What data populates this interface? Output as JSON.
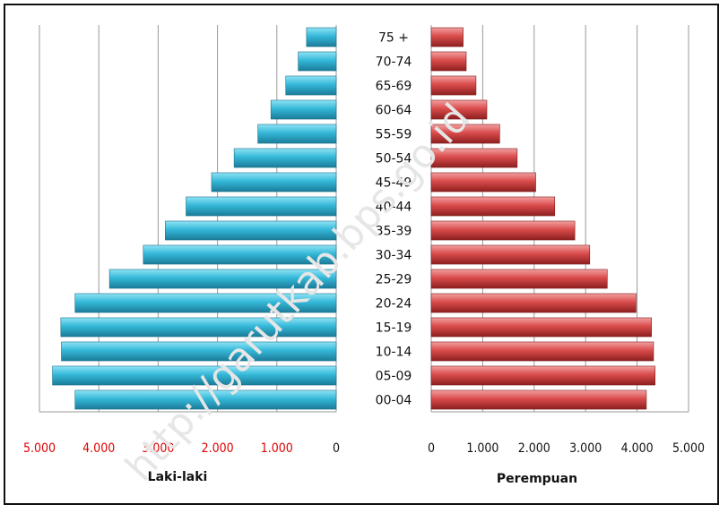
{
  "chart_data": {
    "type": "bar",
    "orientation": "horizontal-population-pyramid",
    "categories": [
      "00-04",
      "05-09",
      "10-14",
      "15-19",
      "20-24",
      "25-29",
      "30-34",
      "35-39",
      "40-44",
      "45-49",
      "50-54",
      "55-59",
      "60-64",
      "65-69",
      "70-74",
      "75 +"
    ],
    "series": [
      {
        "name": "Laki-laki",
        "color": "#2db3d6",
        "values": [
          4400,
          4780,
          4630,
          4640,
          4400,
          3820,
          3250,
          2880,
          2530,
          2100,
          1720,
          1320,
          1100,
          850,
          640,
          500
        ]
      },
      {
        "name": "Perempuan",
        "color": "#d84a4a",
        "values": [
          4180,
          4350,
          4320,
          4280,
          3980,
          3420,
          3080,
          2790,
          2400,
          2030,
          1670,
          1330,
          1080,
          870,
          680,
          620
        ]
      }
    ],
    "left_axis": {
      "title": "Laki-laki",
      "ticks": [
        "5.000",
        "4.000",
        "3.000",
        "2.000",
        "1.000",
        "0"
      ],
      "tick_values": [
        5000,
        4000,
        3000,
        2000,
        1000,
        0
      ],
      "tick_color": "#e00000",
      "reversed": true,
      "range": [
        0,
        5000
      ]
    },
    "right_axis": {
      "title": "Perempuan",
      "ticks": [
        "0",
        "1.000",
        "2.000",
        "3.000",
        "4.000",
        "5.000"
      ],
      "tick_values": [
        0,
        1000,
        2000,
        3000,
        4000,
        5000
      ],
      "tick_color": "#111111",
      "range": [
        0,
        5000
      ]
    },
    "grid": true,
    "legend": "none",
    "watermark": "http://garutkab.bps.go.id"
  }
}
